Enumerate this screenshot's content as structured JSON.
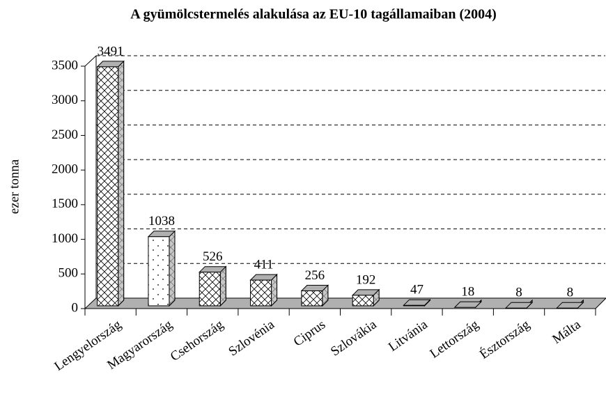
{
  "chart_data": {
    "type": "bar3d",
    "title": "A gyümölcstermelés alakulása az EU-10 tagállamaiban (2004)",
    "y_label": "ezer tonna",
    "categories": [
      "Lengyelország",
      "Magyarország",
      "Csehország",
      "Szlovénia",
      "Ciprus",
      "Szlovákia",
      "Litvánia",
      "Lettország",
      "Észtország",
      "Málta"
    ],
    "values": [
      3491,
      1038,
      526,
      411,
      256,
      192,
      47,
      18,
      8,
      8
    ],
    "patterns": [
      "crosshatch",
      "dots",
      "crosshatch",
      "crosshatch",
      "crosshatch",
      "crosshatch",
      "crosshatch",
      "crosshatch",
      "crosshatch",
      "crosshatch"
    ],
    "side_color": "#b0b0b0",
    "ylim": [
      0,
      3500
    ],
    "yticks": [
      0,
      500,
      1000,
      1500,
      2000,
      2500,
      3000,
      3500
    ],
    "grid": true
  }
}
